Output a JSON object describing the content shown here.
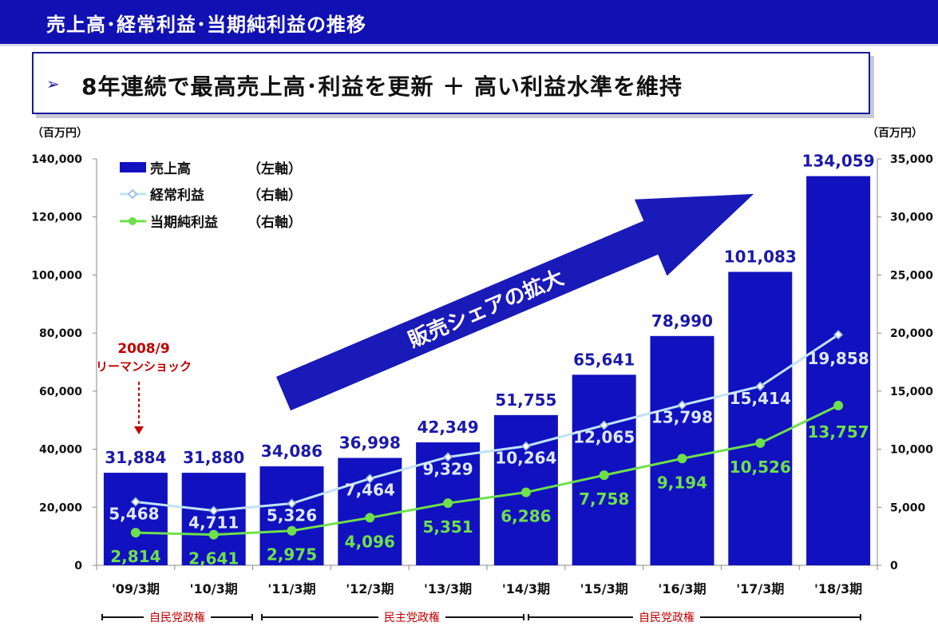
{
  "header": {
    "title": "売上高･経常利益･当期純利益の推移"
  },
  "banner": {
    "arrow": "➢",
    "text": "8年連続で最高売上高･利益を更新 ＋ 高い利益水準を維持"
  },
  "units": {
    "left": "（百万円）",
    "right": "（百万円）"
  },
  "annotation": {
    "year": "2008/9",
    "event": "リーマンショック"
  },
  "big_arrow_label": "販売シェアの拡大",
  "eras": [
    "自民党政権",
    "民主党政権",
    "自民党政権"
  ],
  "colors": {
    "bar": "#1111c0",
    "ordinary": "#bfe3f7",
    "net": "#6ee04a",
    "annotation": "#c00000",
    "header": "#1111b3"
  },
  "chart_data": {
    "type": "bar",
    "categories": [
      "'09/3期",
      "'10/3期",
      "'11/3期",
      "'12/3期",
      "'13/3期",
      "'14/3期",
      "'15/3期",
      "'16/3期",
      "'17/3期",
      "'18/3期"
    ],
    "series": [
      {
        "name": "売上高",
        "axis_note": "（左軸）",
        "kind": "bar",
        "axis": "left",
        "values": [
          31884,
          31880,
          34086,
          36998,
          42349,
          51755,
          65641,
          78990,
          101083,
          134059
        ],
        "labels": [
          "31,884",
          "31,880",
          "34,086",
          "36,998",
          "42,349",
          "51,755",
          "65,641",
          "78,990",
          "101,083",
          "134,059"
        ]
      },
      {
        "name": "経常利益",
        "axis_note": "（右軸）",
        "kind": "line",
        "axis": "right",
        "marker": "diamond",
        "values": [
          5468,
          4711,
          5326,
          7464,
          9329,
          10264,
          12065,
          13798,
          15414,
          19858
        ],
        "labels": [
          "5,468",
          "4,711",
          "5,326",
          "7,464",
          "9,329",
          "10,264",
          "12,065",
          "13,798",
          "15,414",
          "19,858"
        ]
      },
      {
        "name": "当期純利益",
        "axis_note": "（右軸）",
        "kind": "line",
        "axis": "right",
        "marker": "circle",
        "values": [
          2814,
          2641,
          2975,
          4096,
          5351,
          6286,
          7758,
          9194,
          10526,
          13757
        ],
        "labels": [
          "2,814",
          "2,641",
          "2,975",
          "4,096",
          "5,351",
          "6,286",
          "7,758",
          "9,194",
          "10,526",
          "13,757"
        ]
      }
    ],
    "left_axis": {
      "ylim": [
        0,
        140000
      ],
      "ticks": [
        "0",
        "20,000",
        "40,000",
        "60,000",
        "80,000",
        "100,000",
        "120,000",
        "140,000"
      ]
    },
    "right_axis": {
      "ylim": [
        0,
        35000
      ],
      "ticks": [
        "0",
        "5,000",
        "10,000",
        "15,000",
        "20,000",
        "25,000",
        "30,000",
        "35,000"
      ]
    },
    "grid": false,
    "legend": "top-left"
  }
}
